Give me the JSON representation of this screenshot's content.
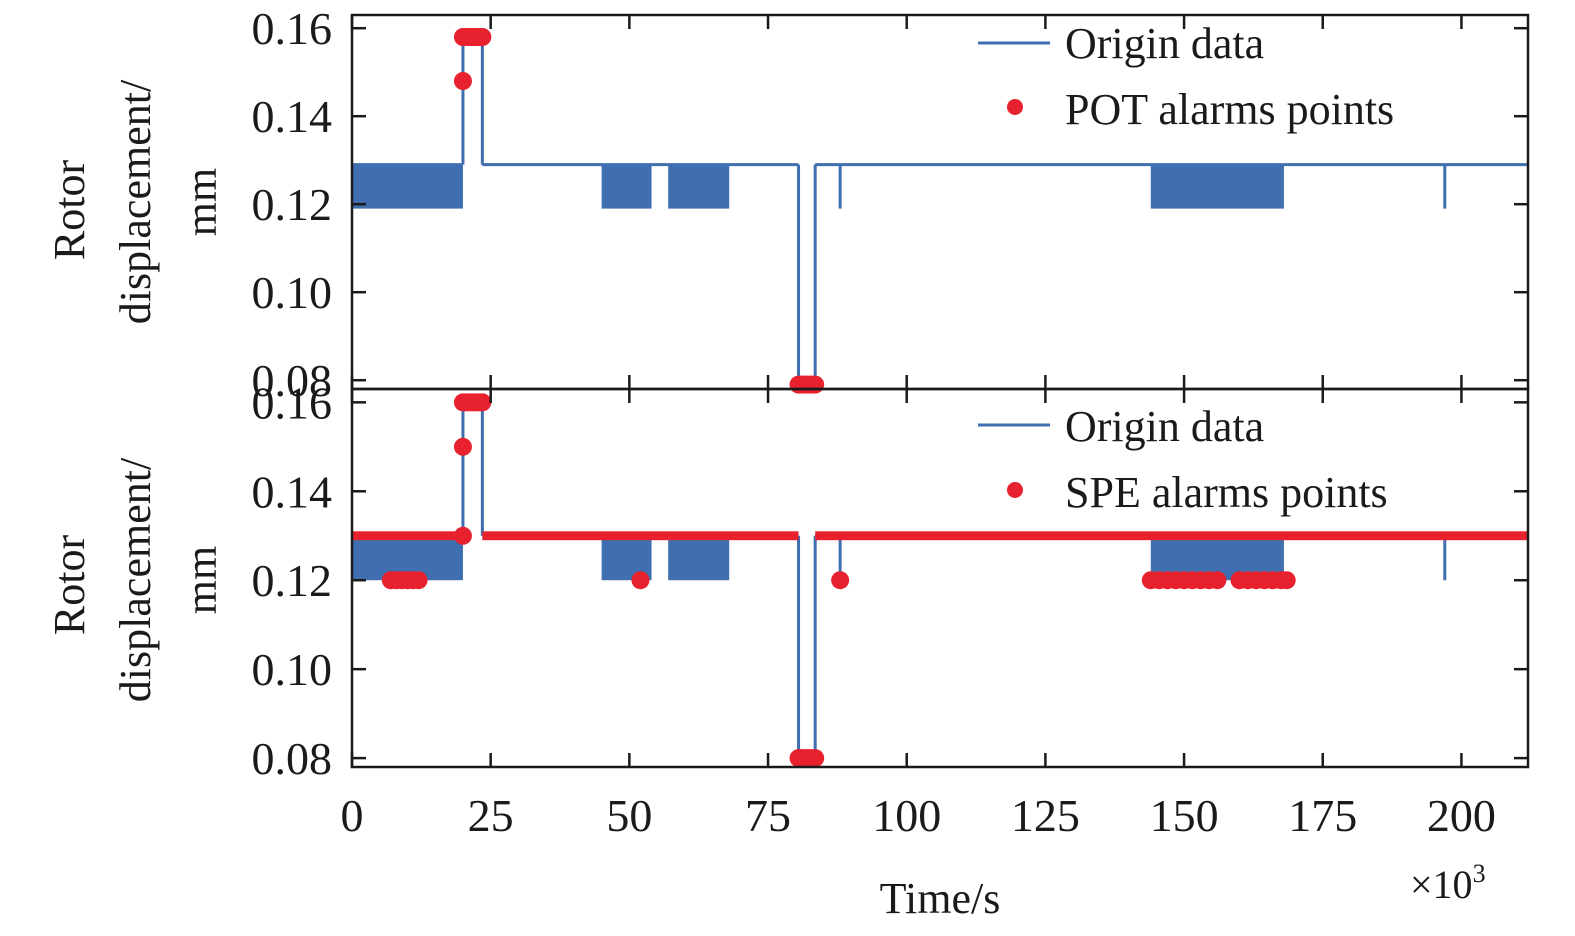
{
  "chart_data": [
    {
      "type": "line",
      "panel": "top",
      "ylabel_line1": "Rotor",
      "ylabel_line2": "displacement/",
      "ylabel_line3": "mm",
      "ylim": [
        0.078,
        0.163
      ],
      "yticks": [
        "0.08",
        "0.10",
        "0.12",
        "0.14",
        "0.16"
      ],
      "xlim": [
        0,
        212
      ],
      "legend_position": "top-right",
      "series": [
        {
          "name": "Origin data",
          "color": "#3f6fb0",
          "baseline": 0.129,
          "oscillation_bands": [
            {
              "x": [
                0,
                20
              ],
              "low": 0.119,
              "high": 0.129
            },
            {
              "x": [
                45,
                54
              ],
              "low": 0.119,
              "high": 0.129
            },
            {
              "x": [
                57,
                68
              ],
              "low": 0.119,
              "high": 0.129
            },
            {
              "x": [
                144,
                168
              ],
              "low": 0.119,
              "high": 0.129
            }
          ],
          "segments": [
            {
              "x": [
                0,
                20
              ],
              "y": 0.129
            },
            {
              "x": [
                20,
                20
              ],
              "y": [
                0.129,
                0.158
              ]
            },
            {
              "x": [
                20,
                23.5
              ],
              "y": 0.158
            },
            {
              "x": [
                23.5,
                23.5
              ],
              "y": [
                0.158,
                0.129
              ]
            },
            {
              "x": [
                23.5,
                80.5
              ],
              "y": 0.129
            },
            {
              "x": [
                80.5,
                80.5
              ],
              "y": [
                0.129,
                0.079
              ]
            },
            {
              "x": [
                80.5,
                83.5
              ],
              "y": 0.079
            },
            {
              "x": [
                83.5,
                83.5
              ],
              "y": [
                0.079,
                0.129
              ]
            },
            {
              "x": [
                83.5,
                212
              ],
              "y": 0.129
            }
          ],
          "spikes": [
            {
              "x": 88,
              "y": 0.119
            },
            {
              "x": 197,
              "y": 0.119
            }
          ]
        },
        {
          "name": "POT alarms points",
          "color": "#e8212e",
          "points": [
            {
              "x": 20,
              "y": 0.158
            },
            {
              "x": 20.5,
              "y": 0.158
            },
            {
              "x": 21,
              "y": 0.158
            },
            {
              "x": 21.5,
              "y": 0.158
            },
            {
              "x": 22,
              "y": 0.158
            },
            {
              "x": 22.5,
              "y": 0.158
            },
            {
              "x": 23,
              "y": 0.158
            },
            {
              "x": 23.5,
              "y": 0.158
            },
            {
              "x": 20,
              "y": 0.148
            },
            {
              "x": 80.5,
              "y": 0.079
            },
            {
              "x": 81,
              "y": 0.079
            },
            {
              "x": 81.5,
              "y": 0.079
            },
            {
              "x": 82,
              "y": 0.079
            },
            {
              "x": 82.5,
              "y": 0.079
            },
            {
              "x": 83,
              "y": 0.079
            },
            {
              "x": 83.5,
              "y": 0.079
            }
          ]
        }
      ]
    },
    {
      "type": "line",
      "panel": "bottom",
      "ylabel_line1": "Rotor",
      "ylabel_line2": "displacement/",
      "ylabel_line3": "mm",
      "xlabel": "Time/s",
      "x_multiplier_base": "×10",
      "x_multiplier_exp": "3",
      "ylim": [
        0.078,
        0.163
      ],
      "yticks": [
        "0.08",
        "0.10",
        "0.12",
        "0.14",
        "0.16"
      ],
      "xlim": [
        0,
        212
      ],
      "xticks": [
        "0",
        "25",
        "50",
        "75",
        "100",
        "125",
        "150",
        "175",
        "200"
      ],
      "legend_position": "top-right",
      "series": [
        {
          "name": "Origin data",
          "color": "#3f6fb0",
          "baseline": 0.13,
          "oscillation_bands": [
            {
              "x": [
                0,
                20
              ],
              "low": 0.12,
              "high": 0.13
            },
            {
              "x": [
                45,
                54
              ],
              "low": 0.12,
              "high": 0.13
            },
            {
              "x": [
                57,
                68
              ],
              "low": 0.12,
              "high": 0.13
            },
            {
              "x": [
                144,
                168
              ],
              "low": 0.12,
              "high": 0.13
            }
          ],
          "segments": [
            {
              "x": [
                0,
                20
              ],
              "y": 0.13
            },
            {
              "x": [
                20,
                20
              ],
              "y": [
                0.13,
                0.16
              ]
            },
            {
              "x": [
                20,
                23.5
              ],
              "y": 0.16
            },
            {
              "x": [
                23.5,
                23.5
              ],
              "y": [
                0.16,
                0.13
              ]
            },
            {
              "x": [
                23.5,
                80.5
              ],
              "y": 0.13
            },
            {
              "x": [
                80.5,
                80.5
              ],
              "y": [
                0.13,
                0.08
              ]
            },
            {
              "x": [
                80.5,
                83.5
              ],
              "y": 0.08
            },
            {
              "x": [
                83.5,
                83.5
              ],
              "y": [
                0.08,
                0.13
              ]
            },
            {
              "x": [
                83.5,
                212
              ],
              "y": 0.13
            }
          ],
          "spikes": [
            {
              "x": 88,
              "y": 0.12
            },
            {
              "x": 197,
              "y": 0.12
            }
          ]
        },
        {
          "name": "SPE alarms points",
          "color": "#e8212e",
          "bands": [
            {
              "x": [
                0,
                20
              ],
              "y_low": 0.129,
              "y_high": 0.131
            },
            {
              "x": [
                23.5,
                80.5
              ],
              "y_low": 0.129,
              "y_high": 0.131
            },
            {
              "x": [
                83.5,
                212
              ],
              "y_low": 0.129,
              "y_high": 0.131
            }
          ],
          "points": [
            {
              "x": 20,
              "y": 0.16
            },
            {
              "x": 20.5,
              "y": 0.16
            },
            {
              "x": 21,
              "y": 0.16
            },
            {
              "x": 21.5,
              "y": 0.16
            },
            {
              "x": 22,
              "y": 0.16
            },
            {
              "x": 22.5,
              "y": 0.16
            },
            {
              "x": 23,
              "y": 0.16
            },
            {
              "x": 23.5,
              "y": 0.16
            },
            {
              "x": 20,
              "y": 0.15
            },
            {
              "x": 20,
              "y": 0.13
            },
            {
              "x": 80.5,
              "y": 0.08
            },
            {
              "x": 81,
              "y": 0.08
            },
            {
              "x": 81.5,
              "y": 0.08
            },
            {
              "x": 82,
              "y": 0.08
            },
            {
              "x": 82.5,
              "y": 0.08
            },
            {
              "x": 83,
              "y": 0.08
            },
            {
              "x": 83.5,
              "y": 0.08
            },
            {
              "x": 7,
              "y": 0.12
            },
            {
              "x": 8,
              "y": 0.12
            },
            {
              "x": 9,
              "y": 0.12
            },
            {
              "x": 10,
              "y": 0.12
            },
            {
              "x": 11,
              "y": 0.12
            },
            {
              "x": 12,
              "y": 0.12
            },
            {
              "x": 52,
              "y": 0.12
            },
            {
              "x": 88,
              "y": 0.12
            },
            {
              "x": 144,
              "y": 0.12
            },
            {
              "x": 145.5,
              "y": 0.12
            },
            {
              "x": 147,
              "y": 0.12
            },
            {
              "x": 148.5,
              "y": 0.12
            },
            {
              "x": 150,
              "y": 0.12
            },
            {
              "x": 151.5,
              "y": 0.12
            },
            {
              "x": 153,
              "y": 0.12
            },
            {
              "x": 154.5,
              "y": 0.12
            },
            {
              "x": 156,
              "y": 0.12
            },
            {
              "x": 160,
              "y": 0.12
            },
            {
              "x": 161.5,
              "y": 0.12
            },
            {
              "x": 163,
              "y": 0.12
            },
            {
              "x": 164.5,
              "y": 0.12
            },
            {
              "x": 166,
              "y": 0.12
            },
            {
              "x": 167.5,
              "y": 0.12
            },
            {
              "x": 168.5,
              "y": 0.12
            }
          ]
        }
      ]
    }
  ]
}
